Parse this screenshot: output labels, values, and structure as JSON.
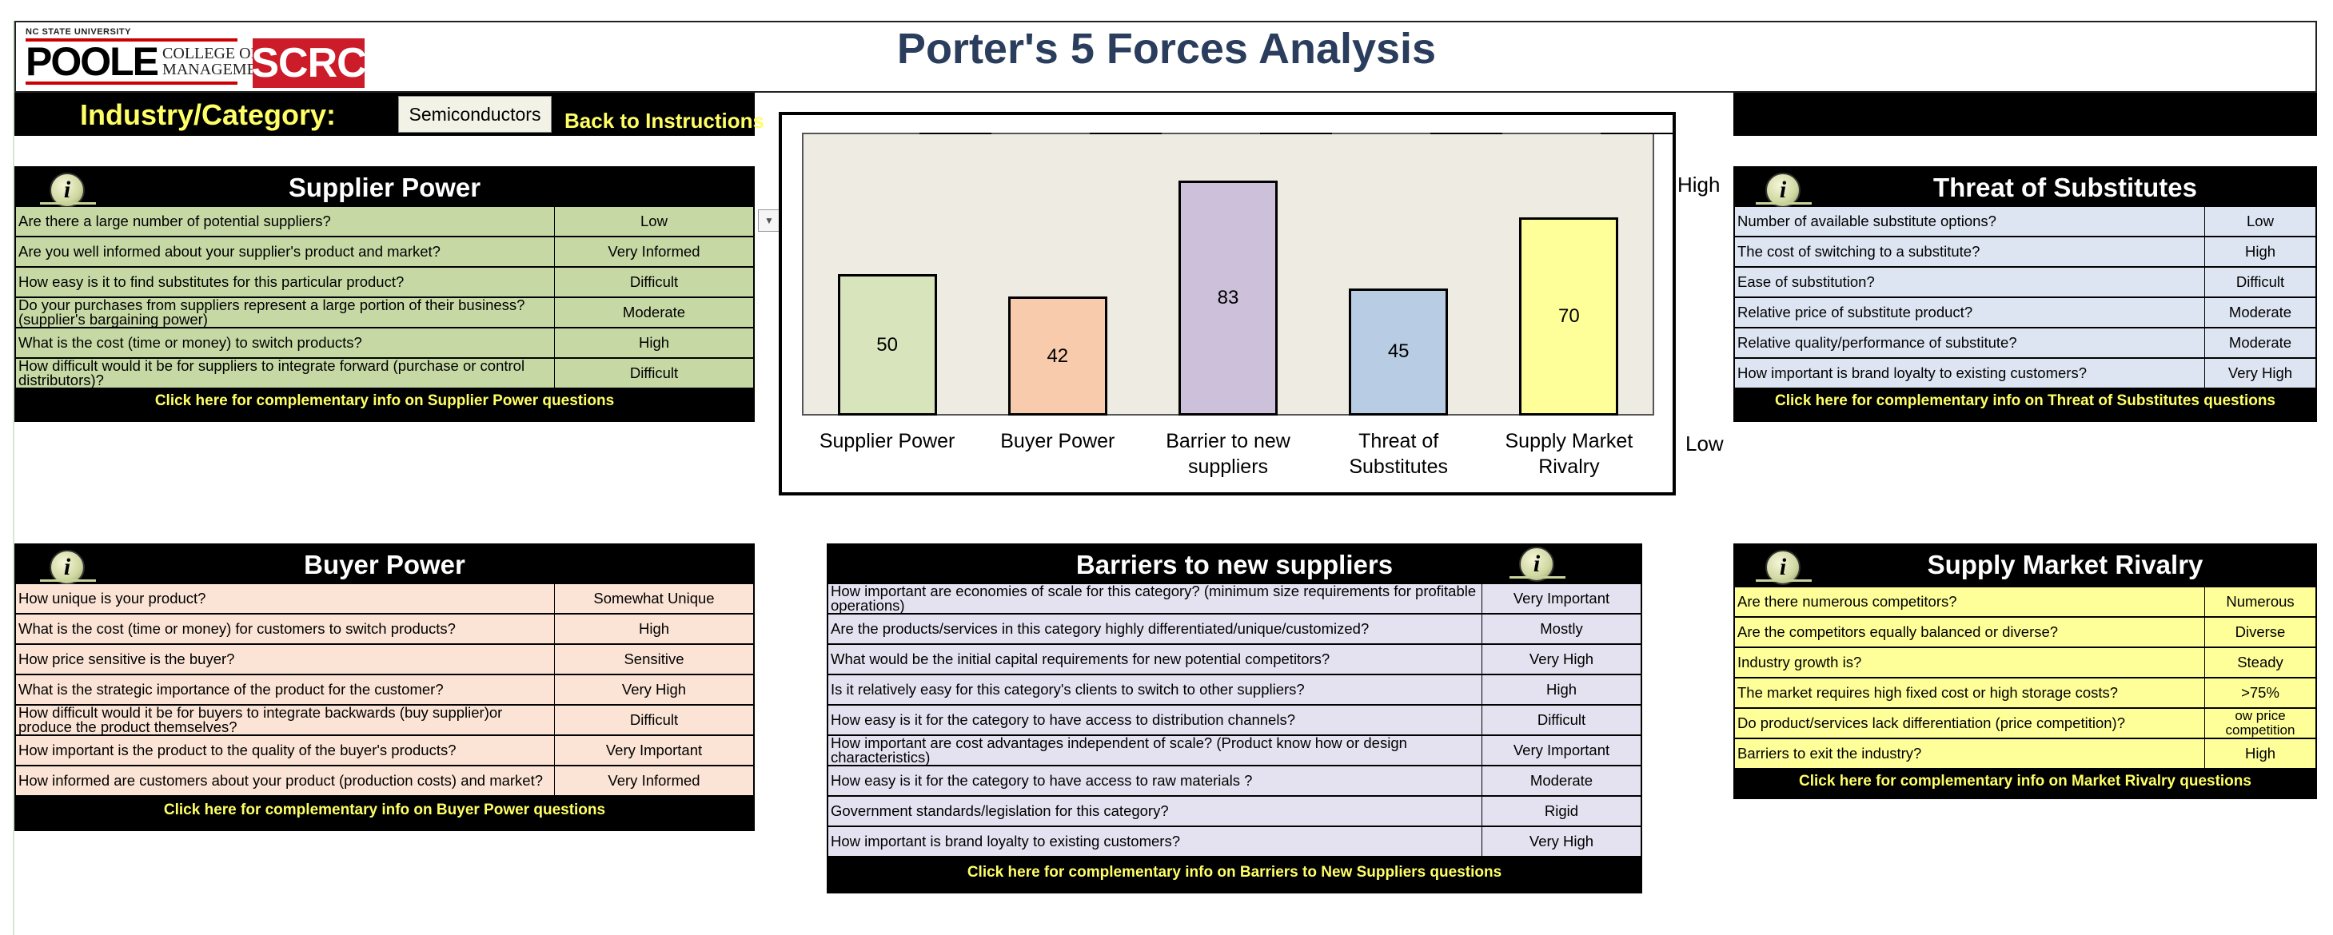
{
  "header": {
    "university": "NC STATE UNIVERSITY",
    "poole": "POOLE",
    "college_line1": "COLLEGE OF",
    "college_line2": "MANAGEMENT",
    "scrc": "SCRC",
    "title": "Porter's 5 Forces Analysis"
  },
  "industry": {
    "label": "Industry/Category:",
    "value": "Semiconductors",
    "back_link": "Back to Instructions"
  },
  "colors": {
    "supplier": "#c6d9a5",
    "buyer": "#fbe4d5",
    "barriers": "#e4e2f0",
    "substitutes": "#dde5f2",
    "rivalry": "#ffff99",
    "title_text": "#2a3d5c",
    "link_text": "#ffff66"
  },
  "supplier_power": {
    "title": "Supplier Power",
    "icon": "info-icon",
    "rows": [
      {
        "q": "Are there a large number of potential suppliers?",
        "a": "Low"
      },
      {
        "q": "Are you well informed about your supplier's product and market?",
        "a": "Very Informed"
      },
      {
        "q": "How easy is it to find substitutes for this particular product?",
        "a": "Difficult"
      },
      {
        "q": "Do your purchases from suppliers represent a large portion of their business? (supplier's bargaining power)",
        "a": "Moderate"
      },
      {
        "q": "What is the cost (time or money) to switch products?",
        "a": "High"
      },
      {
        "q": "How difficult would it be for suppliers to integrate forward (purchase or control distributors)?",
        "a": "Difficult"
      }
    ],
    "link": "Click here for complementary info on Supplier Power questions"
  },
  "buyer_power": {
    "title": "Buyer Power",
    "icon": "info-icon",
    "rows": [
      {
        "q": "How unique is your product?",
        "a": "Somewhat Unique"
      },
      {
        "q": "What is the cost (time or money) for customers to switch products?",
        "a": "High"
      },
      {
        "q": "How price sensitive is the buyer?",
        "a": "Sensitive"
      },
      {
        "q": "What is the strategic importance of the product for the customer?",
        "a": "Very High"
      },
      {
        "q": "How difficult would it be for buyers to integrate backwards (buy supplier)or produce the product themselves?",
        "a": "Difficult"
      },
      {
        "q": "How important is the product to the quality of the buyer's products?",
        "a": "Very Important"
      },
      {
        "q": "How informed are customers about your product (production costs) and market?",
        "a": "Very Informed"
      }
    ],
    "link": "Click here for complementary info on Buyer Power questions"
  },
  "barriers": {
    "title": "Barriers to new suppliers",
    "icon": "info-icon",
    "rows": [
      {
        "q": "How important are economies of scale for this category? (minimum size requirements for profitable operations)",
        "a": "Very Important"
      },
      {
        "q": "Are the products/services in this category highly differentiated/unique/customized?",
        "a": "Mostly"
      },
      {
        "q": "What would be the initial capital requirements for new potential competitors?",
        "a": "Very High"
      },
      {
        "q": "Is it relatively easy for this category's clients to switch to other suppliers?",
        "a": "High"
      },
      {
        "q": "How easy is it for the category to have access to distribution channels?",
        "a": "Difficult"
      },
      {
        "q": "How important are cost advantages independent of scale? (Product know how or design characteristics)",
        "a": "Very Important"
      },
      {
        "q": "How easy is it for the category to have  access to raw materials ?",
        "a": "Moderate"
      },
      {
        "q": "Government  standards/legislation for this category?",
        "a": "Rigid"
      },
      {
        "q": "How important is brand loyalty to existing customers?",
        "a": "Very High"
      }
    ],
    "link": "Click here for complementary info on Barriers to New Suppliers questions"
  },
  "substitutes": {
    "title": "Threat of Substitutes",
    "icon": "info-icon",
    "rows": [
      {
        "q": "Number of available substitute options?",
        "a": "Low"
      },
      {
        "q": "The cost of switching to a substitute?",
        "a": "High"
      },
      {
        "q": "Ease of substitution?",
        "a": "Difficult"
      },
      {
        "q": "Relative price of substitute product?",
        "a": "Moderate"
      },
      {
        "q": "Relative quality/performance of substitute?",
        "a": "Moderate"
      },
      {
        "q": "How important is brand loyalty to existing customers?",
        "a": "Very High"
      }
    ],
    "link": "Click here for complementary info on Threat of Substitutes questions"
  },
  "rivalry": {
    "title": "Supply Market Rivalry",
    "icon": "info-icon",
    "rows": [
      {
        "q": "Are there numerous competitors?",
        "a": "Numerous"
      },
      {
        "q": "Are the competitors equally balanced or diverse?",
        "a": "Diverse"
      },
      {
        "q": "Industry growth is?",
        "a": "Steady"
      },
      {
        "q": "The market requires high fixed cost or high storage costs?",
        "a": ">75%"
      },
      {
        "q": "Do product/services lack differentiation (price competition)?",
        "a": "ow price competition"
      },
      {
        "q": "Barriers to exit the industry?",
        "a": "High"
      }
    ],
    "link": "Click here for complementary info on Market Rivalry questions"
  },
  "chart_labels": {
    "high": "High",
    "low": "Low"
  },
  "chart_data": {
    "type": "bar",
    "categories": [
      "Supplier Power",
      "Buyer Power",
      "Barrier to new suppliers",
      "Threat of Substitutes",
      "Supply Market Rivalry"
    ],
    "values": [
      50,
      42,
      83,
      45,
      70
    ],
    "bar_colors": [
      "#d8e4bc",
      "#f8cbad",
      "#ccc0da",
      "#b8cce4",
      "#ffff99"
    ],
    "ylim": [
      0,
      100
    ],
    "title": "",
    "xlabel": "",
    "ylabel": ""
  }
}
